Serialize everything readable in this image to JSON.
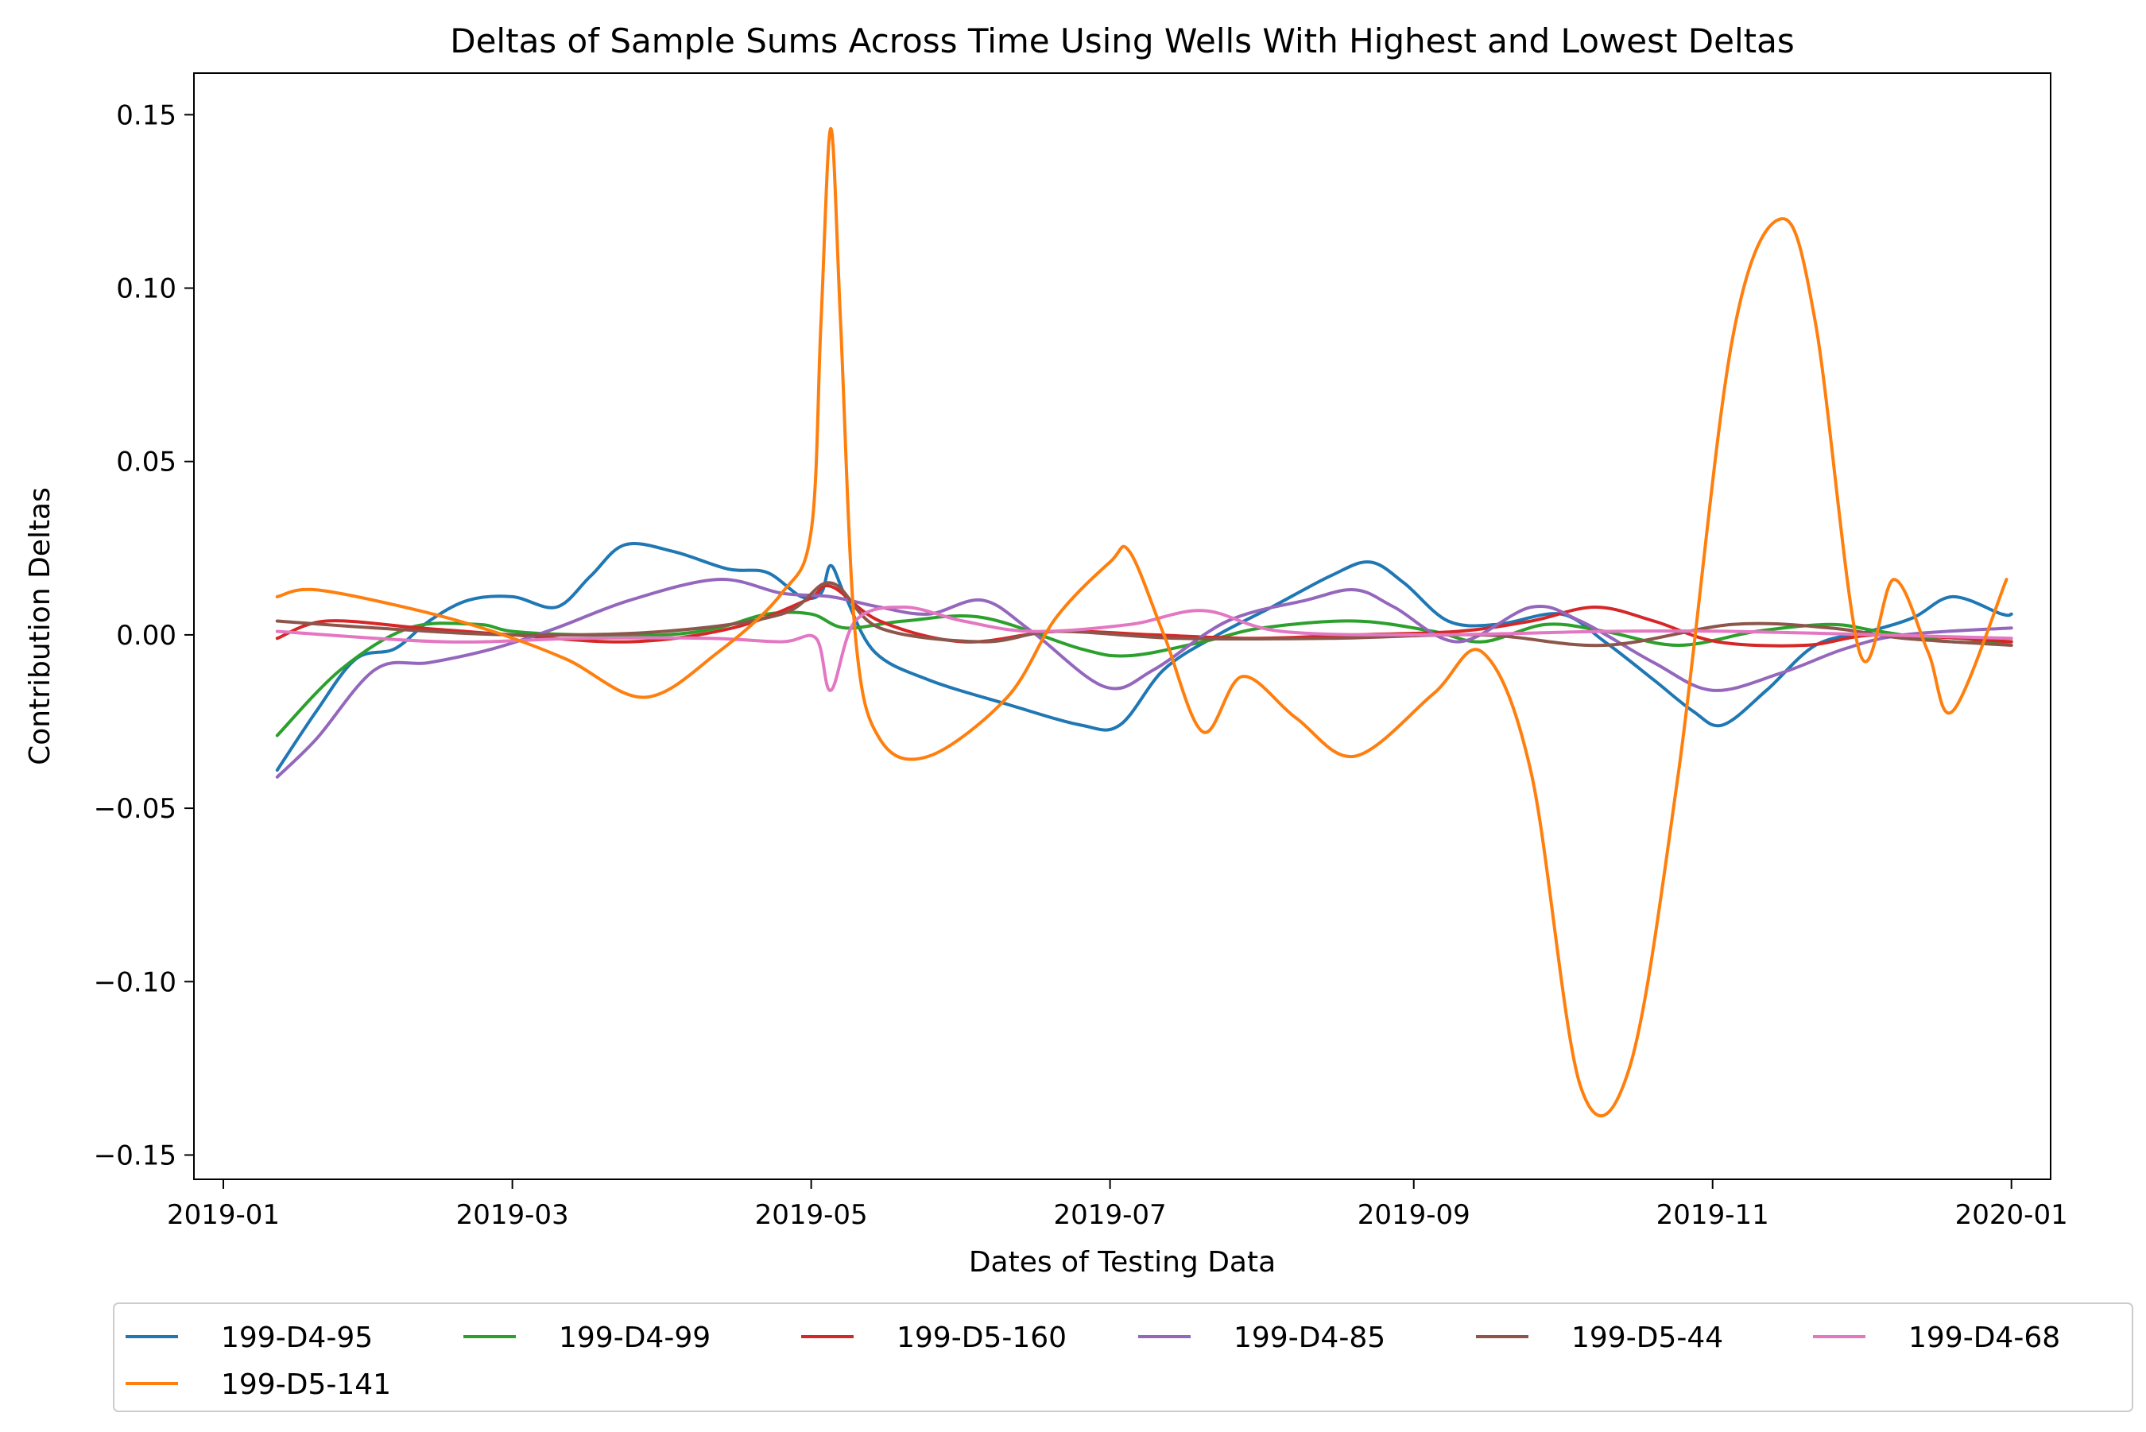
{
  "chart_data": {
    "type": "line",
    "title": "Deltas of Sample Sums Across Time Using Wells With Highest and Lowest Deltas",
    "xlabel": "Dates of Testing Data",
    "ylabel": "Contribution Deltas",
    "xlim": [
      "2018-12-26",
      "2020-01-09"
    ],
    "ylim": [
      -0.157,
      0.162
    ],
    "x_ticks": [
      {
        "date": "2019-01-01",
        "label": "2019-01"
      },
      {
        "date": "2019-03-01",
        "label": "2019-03"
      },
      {
        "date": "2019-05-01",
        "label": "2019-05"
      },
      {
        "date": "2019-07-01",
        "label": "2019-07"
      },
      {
        "date": "2019-09-01",
        "label": "2019-09"
      },
      {
        "date": "2019-11-01",
        "label": "2019-11"
      },
      {
        "date": "2020-01-01",
        "label": "2020-01"
      }
    ],
    "y_ticks": [
      {
        "value": 0.15,
        "label": "0.15"
      },
      {
        "value": 0.1,
        "label": "0.10"
      },
      {
        "value": 0.05,
        "label": "0.05"
      },
      {
        "value": 0.0,
        "label": "0.00"
      },
      {
        "value": -0.05,
        "label": "−0.05"
      },
      {
        "value": -0.1,
        "label": "−0.10"
      },
      {
        "value": -0.15,
        "label": "−0.15"
      }
    ],
    "grid": false,
    "legend_position": "below, 6 columns",
    "series": [
      {
        "name": "199-D4-95",
        "color": "#1f77b4",
        "points": [
          [
            "2019-01-12",
            -0.039
          ],
          [
            "2019-01-20",
            -0.022
          ],
          [
            "2019-01-28",
            -0.007
          ],
          [
            "2019-02-05",
            -0.004
          ],
          [
            "2019-02-12",
            0.004
          ],
          [
            "2019-02-20",
            0.01
          ],
          [
            "2019-03-01",
            0.011
          ],
          [
            "2019-03-10",
            0.008
          ],
          [
            "2019-03-17",
            0.017
          ],
          [
            "2019-03-24",
            0.026
          ],
          [
            "2019-04-03",
            0.024
          ],
          [
            "2019-04-14",
            0.019
          ],
          [
            "2019-04-22",
            0.018
          ],
          [
            "2019-04-29",
            0.011
          ],
          [
            "2019-05-03",
            0.012
          ],
          [
            "2019-05-05",
            0.02
          ],
          [
            "2019-05-08",
            0.011
          ],
          [
            "2019-05-14",
            -0.005
          ],
          [
            "2019-05-25",
            -0.013
          ],
          [
            "2019-06-10",
            -0.02
          ],
          [
            "2019-06-25",
            -0.026
          ],
          [
            "2019-07-03",
            -0.026
          ],
          [
            "2019-07-12",
            -0.01
          ],
          [
            "2019-07-23",
            0.0
          ],
          [
            "2019-08-03",
            0.008
          ],
          [
            "2019-08-15",
            0.017
          ],
          [
            "2019-08-23",
            0.021
          ],
          [
            "2019-08-30",
            0.015
          ],
          [
            "2019-09-08",
            0.004
          ],
          [
            "2019-09-18",
            0.003
          ],
          [
            "2019-10-01",
            0.006
          ],
          [
            "2019-10-10",
            -0.002
          ],
          [
            "2019-10-20",
            -0.013
          ],
          [
            "2019-10-28",
            -0.022
          ],
          [
            "2019-11-03",
            -0.026
          ],
          [
            "2019-11-12",
            -0.016
          ],
          [
            "2019-11-22",
            -0.003
          ],
          [
            "2019-12-03",
            0.001
          ],
          [
            "2019-12-12",
            0.005
          ],
          [
            "2019-12-20",
            0.011
          ],
          [
            "2019-12-30",
            0.006
          ],
          [
            "2020-01-01",
            0.006
          ]
        ]
      },
      {
        "name": "199-D4-99",
        "color": "#2ca02c",
        "points": [
          [
            "2019-01-12",
            -0.029
          ],
          [
            "2019-01-25",
            -0.01
          ],
          [
            "2019-02-08",
            0.002
          ],
          [
            "2019-02-22",
            0.003
          ],
          [
            "2019-03-01",
            0.001
          ],
          [
            "2019-03-15",
            0.0
          ],
          [
            "2019-04-01",
            0.0
          ],
          [
            "2019-04-12",
            0.002
          ],
          [
            "2019-04-22",
            0.006
          ],
          [
            "2019-05-01",
            0.006
          ],
          [
            "2019-05-08",
            0.002
          ],
          [
            "2019-05-20",
            0.004
          ],
          [
            "2019-06-05",
            0.005
          ],
          [
            "2019-06-25",
            -0.004
          ],
          [
            "2019-07-05",
            -0.006
          ],
          [
            "2019-07-20",
            -0.002
          ],
          [
            "2019-08-01",
            0.002
          ],
          [
            "2019-08-20",
            0.004
          ],
          [
            "2019-09-05",
            0.001
          ],
          [
            "2019-09-15",
            -0.002
          ],
          [
            "2019-09-28",
            0.003
          ],
          [
            "2019-10-10",
            0.001
          ],
          [
            "2019-10-25",
            -0.003
          ],
          [
            "2019-11-10",
            0.001
          ],
          [
            "2019-11-25",
            0.003
          ],
          [
            "2019-12-05",
            0.001
          ],
          [
            "2019-12-20",
            -0.002
          ],
          [
            "2020-01-01",
            -0.002
          ]
        ]
      },
      {
        "name": "199-D5-160",
        "color": "#d62728",
        "points": [
          [
            "2019-01-12",
            -0.001
          ],
          [
            "2019-01-22",
            0.004
          ],
          [
            "2019-02-10",
            0.002
          ],
          [
            "2019-03-01",
            0.0
          ],
          [
            "2019-03-25",
            -0.002
          ],
          [
            "2019-04-15",
            0.002
          ],
          [
            "2019-04-30",
            0.01
          ],
          [
            "2019-05-05",
            0.014
          ],
          [
            "2019-05-15",
            0.004
          ],
          [
            "2019-06-01",
            -0.002
          ],
          [
            "2019-06-20",
            0.001
          ],
          [
            "2019-07-10",
            0.0
          ],
          [
            "2019-07-30",
            -0.001
          ],
          [
            "2019-08-20",
            0.0
          ],
          [
            "2019-09-10",
            0.001
          ],
          [
            "2019-09-25",
            0.004
          ],
          [
            "2019-10-08",
            0.008
          ],
          [
            "2019-10-20",
            0.004
          ],
          [
            "2019-11-02",
            -0.002
          ],
          [
            "2019-11-20",
            -0.003
          ],
          [
            "2019-12-05",
            0.0
          ],
          [
            "2020-01-01",
            -0.002
          ]
        ]
      },
      {
        "name": "199-D4-85",
        "color": "#9467bd",
        "points": [
          [
            "2019-01-12",
            -0.041
          ],
          [
            "2019-01-20",
            -0.03
          ],
          [
            "2019-02-01",
            -0.01
          ],
          [
            "2019-02-12",
            -0.008
          ],
          [
            "2019-02-25",
            -0.004
          ],
          [
            "2019-03-10",
            0.002
          ],
          [
            "2019-03-25",
            0.01
          ],
          [
            "2019-04-12",
            0.016
          ],
          [
            "2019-04-25",
            0.012
          ],
          [
            "2019-05-05",
            0.011
          ],
          [
            "2019-05-15",
            0.008
          ],
          [
            "2019-05-25",
            0.006
          ],
          [
            "2019-06-05",
            0.01
          ],
          [
            "2019-06-15",
            0.001
          ],
          [
            "2019-06-30",
            -0.015
          ],
          [
            "2019-07-10",
            -0.01
          ],
          [
            "2019-07-25",
            0.004
          ],
          [
            "2019-08-10",
            0.01
          ],
          [
            "2019-08-20",
            0.013
          ],
          [
            "2019-08-28",
            0.008
          ],
          [
            "2019-09-10",
            -0.002
          ],
          [
            "2019-09-25",
            0.008
          ],
          [
            "2019-10-05",
            0.004
          ],
          [
            "2019-10-20",
            -0.008
          ],
          [
            "2019-11-01",
            -0.016
          ],
          [
            "2019-11-15",
            -0.011
          ],
          [
            "2019-11-28",
            -0.004
          ],
          [
            "2019-12-10",
            0.0
          ],
          [
            "2020-01-01",
            0.002
          ]
        ]
      },
      {
        "name": "199-D5-44",
        "color": "#8c564b",
        "points": [
          [
            "2019-01-12",
            0.004
          ],
          [
            "2019-02-01",
            0.002
          ],
          [
            "2019-03-01",
            0.0
          ],
          [
            "2019-04-01",
            0.001
          ],
          [
            "2019-04-25",
            0.006
          ],
          [
            "2019-05-05",
            0.015
          ],
          [
            "2019-05-15",
            0.002
          ],
          [
            "2019-06-05",
            -0.002
          ],
          [
            "2019-06-20",
            0.001
          ],
          [
            "2019-07-15",
            -0.001
          ],
          [
            "2019-08-15",
            -0.001
          ],
          [
            "2019-09-15",
            0.0
          ],
          [
            "2019-10-10",
            -0.003
          ],
          [
            "2019-11-05",
            0.003
          ],
          [
            "2019-11-25",
            0.002
          ],
          [
            "2019-12-10",
            -0.001
          ],
          [
            "2020-01-01",
            -0.003
          ]
        ]
      },
      {
        "name": "199-D4-68",
        "color": "#e377c2",
        "points": [
          [
            "2019-01-12",
            0.001
          ],
          [
            "2019-02-15",
            -0.002
          ],
          [
            "2019-03-15",
            -0.001
          ],
          [
            "2019-04-10",
            -0.001
          ],
          [
            "2019-04-25",
            -0.002
          ],
          [
            "2019-05-02",
            -0.001
          ],
          [
            "2019-05-05",
            -0.016
          ],
          [
            "2019-05-10",
            0.004
          ],
          [
            "2019-05-20",
            0.008
          ],
          [
            "2019-06-01",
            0.004
          ],
          [
            "2019-06-15",
            0.001
          ],
          [
            "2019-07-05",
            0.003
          ],
          [
            "2019-07-20",
            0.007
          ],
          [
            "2019-08-05",
            0.001
          ],
          [
            "2019-09-05",
            0.0
          ],
          [
            "2019-10-10",
            0.001
          ],
          [
            "2019-11-05",
            0.001
          ],
          [
            "2019-12-05",
            0.0
          ],
          [
            "2020-01-01",
            -0.001
          ]
        ]
      },
      {
        "name": "199-D5-141",
        "color": "#ff7f0e",
        "points": [
          [
            "2019-01-12",
            0.011
          ],
          [
            "2019-01-20",
            0.013
          ],
          [
            "2019-02-10",
            0.007
          ],
          [
            "2019-02-25",
            0.001
          ],
          [
            "2019-03-12",
            -0.007
          ],
          [
            "2019-03-28",
            -0.018
          ],
          [
            "2019-04-12",
            -0.005
          ],
          [
            "2019-04-25",
            0.012
          ],
          [
            "2019-05-01",
            0.03
          ],
          [
            "2019-05-03",
            0.09
          ],
          [
            "2019-05-05",
            0.146
          ],
          [
            "2019-05-07",
            0.09
          ],
          [
            "2019-05-10",
            0.0
          ],
          [
            "2019-05-15",
            -0.03
          ],
          [
            "2019-05-25",
            -0.035
          ],
          [
            "2019-06-10",
            -0.018
          ],
          [
            "2019-06-20",
            0.005
          ],
          [
            "2019-07-01",
            0.021
          ],
          [
            "2019-07-05",
            0.024
          ],
          [
            "2019-07-12",
            0.0
          ],
          [
            "2019-07-20",
            -0.028
          ],
          [
            "2019-07-28",
            -0.012
          ],
          [
            "2019-08-08",
            -0.024
          ],
          [
            "2019-08-20",
            -0.035
          ],
          [
            "2019-09-05",
            -0.017
          ],
          [
            "2019-09-15",
            -0.005
          ],
          [
            "2019-09-25",
            -0.04
          ],
          [
            "2019-10-05",
            -0.13
          ],
          [
            "2019-10-15",
            -0.125
          ],
          [
            "2019-10-25",
            -0.04
          ],
          [
            "2019-11-05",
            0.085
          ],
          [
            "2019-11-15",
            0.12
          ],
          [
            "2019-11-22",
            0.09
          ],
          [
            "2019-12-01",
            -0.005
          ],
          [
            "2019-12-08",
            0.016
          ],
          [
            "2019-12-15",
            -0.005
          ],
          [
            "2019-12-20",
            -0.022
          ],
          [
            "2019-12-31",
            0.016
          ]
        ]
      }
    ]
  }
}
